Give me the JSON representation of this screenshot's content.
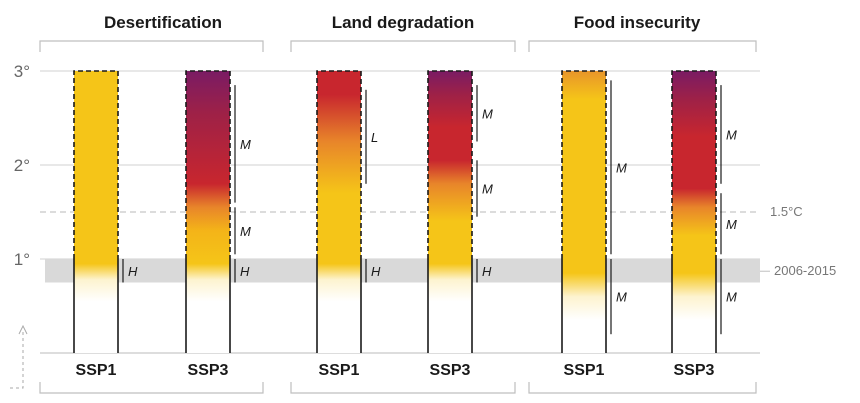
{
  "chart_data": {
    "type": "bar",
    "ylim": [
      0,
      3
    ],
    "y_ticks": [
      "1°",
      "2°",
      "3°"
    ],
    "reference_lines": [
      {
        "label": "1.5°C",
        "value": 1.5,
        "style": "dashed"
      },
      {
        "label": "2006-2015",
        "value": 0.87,
        "band": [
          0.75,
          1.0
        ],
        "style": "band"
      }
    ],
    "colors": {
      "undetectable": "#ffffff",
      "moderate": "#f5c518",
      "high": "#c8262e",
      "very_high": "#7a1b64",
      "band": "#d9d9d9",
      "bracket": "#bfbfbf"
    },
    "panels": [
      {
        "title": "Desertification",
        "bars": [
          {
            "scenario": "SSP1",
            "stops": [
              [
                0.55,
                "#ffffff"
              ],
              [
                0.78,
                "#fdf3cf"
              ],
              [
                0.95,
                "#f5c518"
              ],
              [
                3.0,
                "#f5c518"
              ]
            ],
            "confidence": [
              {
                "level": "H",
                "from": 0.75,
                "to": 1.0
              }
            ]
          },
          {
            "scenario": "SSP3",
            "stops": [
              [
                0.55,
                "#ffffff"
              ],
              [
                0.78,
                "#fdf3cf"
              ],
              [
                0.95,
                "#f5c518"
              ],
              [
                1.3,
                "#f4b418"
              ],
              [
                1.55,
                "#e8852a"
              ],
              [
                1.8,
                "#c8262e"
              ],
              [
                2.55,
                "#9e2147"
              ],
              [
                3.0,
                "#7a1b64"
              ]
            ],
            "confidence": [
              {
                "level": "H",
                "from": 0.75,
                "to": 1.0
              },
              {
                "level": "M",
                "from": 1.05,
                "to": 1.55
              },
              {
                "level": "M",
                "from": 1.6,
                "to": 2.85
              }
            ]
          }
        ]
      },
      {
        "title": "Land degradation",
        "bars": [
          {
            "scenario": "SSP1",
            "stops": [
              [
                0.55,
                "#ffffff"
              ],
              [
                0.78,
                "#fdf3cf"
              ],
              [
                0.95,
                "#f5c518"
              ],
              [
                1.7,
                "#f5c518"
              ],
              [
                2.25,
                "#e8852a"
              ],
              [
                2.75,
                "#c8262e"
              ],
              [
                3.0,
                "#c8262e"
              ]
            ],
            "confidence": [
              {
                "level": "H",
                "from": 0.75,
                "to": 1.0
              },
              {
                "level": "L",
                "from": 1.8,
                "to": 2.8
              }
            ]
          },
          {
            "scenario": "SSP3",
            "stops": [
              [
                0.55,
                "#ffffff"
              ],
              [
                0.78,
                "#fdf3cf"
              ],
              [
                0.95,
                "#f5c518"
              ],
              [
                1.4,
                "#f5c518"
              ],
              [
                1.8,
                "#e8852a"
              ],
              [
                2.05,
                "#c8262e"
              ],
              [
                2.4,
                "#c8262e"
              ],
              [
                2.75,
                "#9e2147"
              ],
              [
                3.0,
                "#7a1b64"
              ]
            ],
            "confidence": [
              {
                "level": "H",
                "from": 0.75,
                "to": 1.0
              },
              {
                "level": "M",
                "from": 1.45,
                "to": 2.05
              },
              {
                "level": "M",
                "from": 2.25,
                "to": 2.85
              }
            ]
          }
        ]
      },
      {
        "title": "Food insecurity",
        "bars": [
          {
            "scenario": "SSP1",
            "stops": [
              [
                0.35,
                "#ffffff"
              ],
              [
                0.6,
                "#fdf3cf"
              ],
              [
                0.85,
                "#f5c518"
              ],
              [
                2.7,
                "#f5c518"
              ],
              [
                3.0,
                "#e8952a"
              ]
            ],
            "confidence": [
              {
                "level": "M",
                "from": 0.2,
                "to": 1.0
              },
              {
                "level": "M",
                "from": 1.05,
                "to": 2.9
              }
            ]
          },
          {
            "scenario": "SSP3",
            "stops": [
              [
                0.35,
                "#ffffff"
              ],
              [
                0.6,
                "#fdf3cf"
              ],
              [
                0.85,
                "#f5c518"
              ],
              [
                1.25,
                "#f5c518"
              ],
              [
                1.55,
                "#e8852a"
              ],
              [
                1.75,
                "#c8262e"
              ],
              [
                2.3,
                "#c8262e"
              ],
              [
                2.7,
                "#9e2147"
              ],
              [
                3.0,
                "#7a1b64"
              ]
            ],
            "confidence": [
              {
                "level": "M",
                "from": 0.2,
                "to": 1.0
              },
              {
                "level": "M",
                "from": 1.05,
                "to": 1.7
              },
              {
                "level": "M",
                "from": 1.8,
                "to": 2.85
              }
            ]
          }
        ]
      }
    ]
  }
}
